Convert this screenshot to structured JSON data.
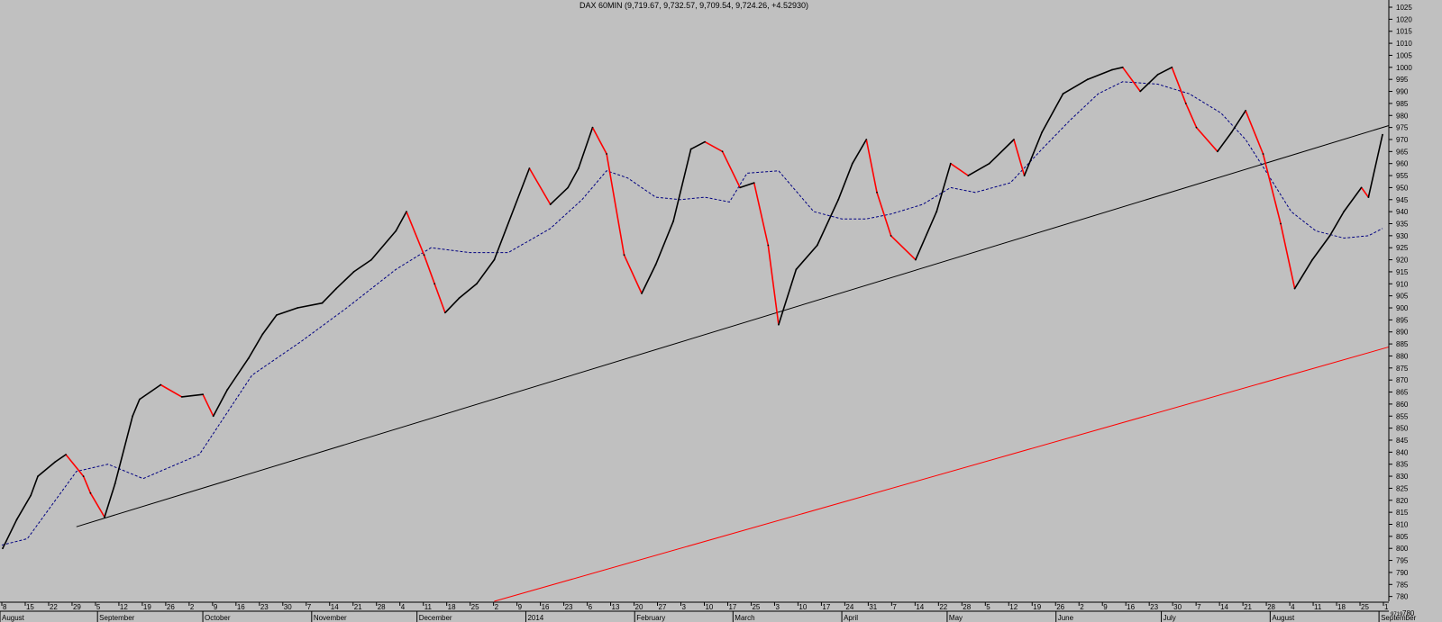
{
  "chart_data": {
    "type": "line",
    "title": "DAX 60MIN (9,719.67, 9,732.57, 9,709.54, 9,724.26, +4.52930)",
    "xlabel": "",
    "ylabel": "",
    "ylim": [
      7780,
      10280
    ],
    "grid": false,
    "y_ticks": [
      1025,
      1020,
      1015,
      1010,
      1005,
      1000,
      995,
      990,
      985,
      980,
      975,
      970,
      965,
      960,
      955,
      950,
      945,
      940,
      935,
      930,
      925,
      920,
      915,
      910,
      905,
      900,
      895,
      890,
      885,
      880,
      875,
      870,
      865,
      860,
      855,
      850,
      845,
      840,
      835,
      830,
      825,
      820,
      815,
      810,
      805,
      800,
      795,
      790,
      785,
      780
    ],
    "y_ticks_note": "tick labels printed truncated (x10 scale)",
    "y_extra_labels": [
      "9719",
      "780"
    ],
    "x_day_labels": [
      "8",
      "15",
      "22",
      "29",
      "5",
      "12",
      "19",
      "26",
      "2",
      "9",
      "16",
      "23",
      "30",
      "7",
      "14",
      "21",
      "28",
      "4",
      "11",
      "18",
      "25",
      "2",
      "9",
      "16",
      "23",
      "6",
      "13",
      "20",
      "27",
      "3",
      "10",
      "17",
      "25",
      "3",
      "10",
      "17",
      "24",
      "31",
      "7",
      "14",
      "22",
      "28",
      "5",
      "12",
      "19",
      "26",
      "2",
      "9",
      "16",
      "23",
      "30",
      "7",
      "14",
      "21",
      "28",
      "4",
      "11",
      "18",
      "25",
      "1"
    ],
    "x_month_labels": [
      "August",
      "September",
      "October",
      "November",
      "December",
      "2014",
      "February",
      "March",
      "April",
      "May",
      "June",
      "July",
      "August",
      "September"
    ],
    "series": [
      {
        "kind": "price",
        "color": "#000000",
        "down_color": "#ff0000",
        "x": [
          "2013-08-05",
          "2013-08-09",
          "2013-08-13",
          "2013-08-15",
          "2013-08-20",
          "2013-08-23",
          "2013-08-28",
          "2013-08-30",
          "2013-09-03",
          "2013-09-06",
          "2013-09-11",
          "2013-09-13",
          "2013-09-19",
          "2013-09-25",
          "2013-10-01",
          "2013-10-04",
          "2013-10-08",
          "2013-10-14",
          "2013-10-18",
          "2013-10-22",
          "2013-10-28",
          "2013-11-04",
          "2013-11-08",
          "2013-11-13",
          "2013-11-18",
          "2013-11-25",
          "2013-11-28",
          "2013-12-03",
          "2013-12-06",
          "2013-12-09",
          "2013-12-13",
          "2013-12-18",
          "2013-12-23",
          "2014-01-02",
          "2014-01-08",
          "2014-01-13",
          "2014-01-16",
          "2014-01-20",
          "2014-01-24",
          "2014-01-29",
          "2014-02-03",
          "2014-02-07",
          "2014-02-12",
          "2014-02-17",
          "2014-02-21",
          "2014-02-26",
          "2014-03-03",
          "2014-03-07",
          "2014-03-11",
          "2014-03-14",
          "2014-03-19",
          "2014-03-25",
          "2014-03-31",
          "2014-04-04",
          "2014-04-08",
          "2014-04-11",
          "2014-04-15",
          "2014-04-22",
          "2014-04-28",
          "2014-05-02",
          "2014-05-07",
          "2014-05-13",
          "2014-05-20",
          "2014-05-23",
          "2014-05-28",
          "2014-06-03",
          "2014-06-10",
          "2014-06-17",
          "2014-06-20",
          "2014-06-25",
          "2014-06-30",
          "2014-07-04",
          "2014-07-08",
          "2014-07-11",
          "2014-07-17",
          "2014-07-21",
          "2014-07-25",
          "2014-07-30",
          "2014-08-04",
          "2014-08-08",
          "2014-08-13",
          "2014-08-18",
          "2014-08-22",
          "2014-08-27",
          "2014-08-29",
          "2014-09-02"
        ],
        "values": [
          8000,
          8120,
          8220,
          8300,
          8360,
          8390,
          8300,
          8230,
          8130,
          8270,
          8550,
          8620,
          8680,
          8630,
          8640,
          8550,
          8660,
          8790,
          8890,
          8970,
          9000,
          9020,
          9080,
          9150,
          9200,
          9320,
          9400,
          9220,
          9100,
          8980,
          9040,
          9100,
          9200,
          9580,
          9430,
          9500,
          9580,
          9750,
          9640,
          9220,
          9060,
          9180,
          9360,
          9660,
          9690,
          9650,
          9500,
          9520,
          9260,
          8930,
          9160,
          9260,
          9450,
          9600,
          9700,
          9480,
          9300,
          9200,
          9400,
          9600,
          9550,
          9600,
          9700,
          9550,
          9730,
          9890,
          9950,
          9990,
          10000,
          9900,
          9970,
          10000,
          9850,
          9750,
          9650,
          9730,
          9820,
          9640,
          9350,
          9080,
          9200,
          9300,
          9400,
          9500,
          9460,
          9720
        ]
      },
      {
        "kind": "moving-average",
        "color": "#000080",
        "dashed": true,
        "x": [
          "2013-08-01",
          "2013-08-12",
          "2013-08-26",
          "2013-09-04",
          "2013-09-14",
          "2013-09-30",
          "2013-10-15",
          "2013-10-29",
          "2013-11-11",
          "2013-11-25",
          "2013-12-05",
          "2013-12-16",
          "2013-12-27",
          "2014-01-08",
          "2014-01-17",
          "2014-01-24",
          "2014-01-30",
          "2014-02-07",
          "2014-02-14",
          "2014-02-21",
          "2014-02-28",
          "2014-03-05",
          "2014-03-14",
          "2014-03-24",
          "2014-04-01",
          "2014-04-08",
          "2014-04-15",
          "2014-04-24",
          "2014-05-02",
          "2014-05-09",
          "2014-05-19",
          "2014-05-28",
          "2014-06-05",
          "2014-06-13",
          "2014-06-20",
          "2014-06-30",
          "2014-07-09",
          "2014-07-18",
          "2014-07-25",
          "2014-08-01",
          "2014-08-07",
          "2014-08-14",
          "2014-08-22",
          "2014-08-29",
          "2014-09-02"
        ],
        "values": [
          8000,
          8040,
          8320,
          8350,
          8290,
          8390,
          8720,
          8860,
          9000,
          9160,
          9250,
          9230,
          9230,
          9330,
          9450,
          9570,
          9540,
          9460,
          9450,
          9460,
          9440,
          9560,
          9570,
          9400,
          9370,
          9370,
          9390,
          9430,
          9500,
          9480,
          9520,
          9660,
          9780,
          9890,
          9940,
          9930,
          9890,
          9810,
          9700,
          9540,
          9400,
          9320,
          9290,
          9300,
          9330
        ]
      },
      {
        "kind": "trendline",
        "color": "#000000",
        "x": [
          "2013-08-26",
          "2014-09-02"
        ],
        "values": [
          8090,
          9750
        ]
      },
      {
        "kind": "trendline",
        "color": "#ff0000",
        "x": [
          "2013-12-23",
          "2014-09-02"
        ],
        "values": [
          7780,
          8830
        ]
      }
    ]
  }
}
